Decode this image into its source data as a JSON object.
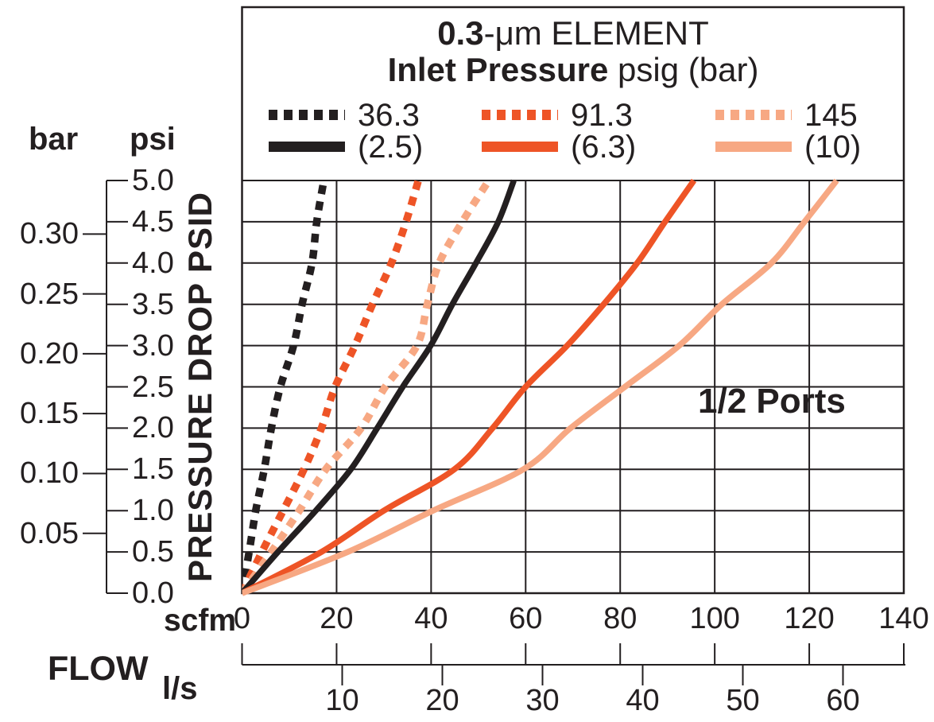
{
  "colors": {
    "black": "#231f20",
    "orange": "#ee5426",
    "light_orange": "#f7a883",
    "grid": "#231f20",
    "background": "#ffffff"
  },
  "title": {
    "line1_bold": "0.3",
    "line1_rest": "-μm ELEMENT",
    "line2_bold": "Inlet Pressure",
    "line2_rest": " psig (bar)"
  },
  "legend": {
    "entries": [
      {
        "psig": "36.3",
        "bar": "(2.5)",
        "color_key": "black"
      },
      {
        "psig": "91.3",
        "bar": "(6.3)",
        "color_key": "orange"
      },
      {
        "psig": "145",
        "bar": "(10)",
        "color_key": "light_orange"
      }
    ]
  },
  "annotation": "1/2 Ports",
  "y_axis": {
    "unit_left": "bar",
    "unit_right": "psi",
    "label": "PRESSURE DROP PSID",
    "psi_ticks": [
      "5.0",
      "4.5",
      "4.0",
      "3.5",
      "3.0",
      "2.5",
      "2.0",
      "1.5",
      "1.0",
      "0.5",
      "0.0"
    ],
    "bar_ticks": [
      "0.30",
      "0.25",
      "0.20",
      "0.15",
      "0.10",
      "0.05"
    ]
  },
  "x_axis": {
    "unit_top": "scfm",
    "label": "FLOW",
    "unit_bottom": "l/s",
    "scfm_ticks": [
      "0",
      "20",
      "40",
      "60",
      "80",
      "100",
      "120",
      "140"
    ],
    "ls_ticks": [
      "10",
      "20",
      "30",
      "40",
      "50",
      "60"
    ]
  },
  "chart_data": {
    "type": "line",
    "title": "0.3-μm ELEMENT",
    "subtitle": "Inlet Pressure psig (bar)",
    "xlabel": "FLOW",
    "ylabel": "PRESSURE DROP PSID",
    "annotation": "1/2 Ports",
    "grid": true,
    "legend_position": "top",
    "xlim": [
      0,
      140
    ],
    "ylim": [
      0,
      5
    ],
    "x_unit_primary": "scfm",
    "x_unit_secondary": "l/s",
    "scfm_per_ls": 2.1189,
    "psi_per_bar": 14.5038,
    "x_ticks_scfm": [
      0,
      20,
      40,
      60,
      80,
      100,
      120,
      140
    ],
    "x_ticks_ls": [
      10,
      20,
      30,
      40,
      50,
      60
    ],
    "y_ticks_psi": [
      0,
      0.5,
      1.0,
      1.5,
      2.0,
      2.5,
      3.0,
      3.5,
      4.0,
      4.5,
      5.0
    ],
    "y_ticks_bar": [
      0.05,
      0.1,
      0.15,
      0.2,
      0.25,
      0.3
    ],
    "series": [
      {
        "name": "36.3 psig (2.5 bar) dashed",
        "inlet_pressure_psig": 36.3,
        "inlet_pressure_bar": 2.5,
        "style": "dashed",
        "color": "#231f20",
        "points": [
          [
            0,
            0
          ],
          [
            1.5,
            0.5
          ],
          [
            2.9,
            1.0
          ],
          [
            4.7,
            1.5
          ],
          [
            6.2,
            2.0
          ],
          [
            8.1,
            2.5
          ],
          [
            10.9,
            3.0
          ],
          [
            12.7,
            3.5
          ],
          [
            14.8,
            4.0
          ],
          [
            15.8,
            4.5
          ],
          [
            17.3,
            5.0
          ]
        ]
      },
      {
        "name": "91.3 psig (6.3 bar) dashed",
        "inlet_pressure_psig": 91.3,
        "inlet_pressure_bar": 6.3,
        "style": "dashed",
        "color": "#ee5426",
        "points": [
          [
            0,
            0
          ],
          [
            4.2,
            0.5
          ],
          [
            8.7,
            1.0
          ],
          [
            13.1,
            1.5
          ],
          [
            16.8,
            2.0
          ],
          [
            19.7,
            2.5
          ],
          [
            23.9,
            3.0
          ],
          [
            27.6,
            3.5
          ],
          [
            31.6,
            4.0
          ],
          [
            34.7,
            4.5
          ],
          [
            37.3,
            5.0
          ]
        ]
      },
      {
        "name": "145 psig (10 bar) dashed",
        "inlet_pressure_psig": 145,
        "inlet_pressure_bar": 10,
        "style": "dashed",
        "color": "#f7a883",
        "points": [
          [
            0,
            0
          ],
          [
            6.2,
            0.5
          ],
          [
            12.1,
            1.0
          ],
          [
            17.7,
            1.5
          ],
          [
            25.2,
            2.0
          ],
          [
            30.3,
            2.5
          ],
          [
            37.0,
            3.0
          ],
          [
            39.2,
            3.5
          ],
          [
            41.7,
            4.0
          ],
          [
            46.6,
            4.5
          ],
          [
            52.2,
            5.0
          ]
        ]
      },
      {
        "name": "36.3 psig (2.5 bar) solid",
        "inlet_pressure_psig": 36.3,
        "inlet_pressure_bar": 2.5,
        "style": "solid",
        "color": "#231f20",
        "points": [
          [
            0,
            0
          ],
          [
            7.6,
            0.5
          ],
          [
            15.6,
            1.0
          ],
          [
            23.0,
            1.5
          ],
          [
            28.6,
            2.0
          ],
          [
            34.0,
            2.5
          ],
          [
            39.9,
            3.0
          ],
          [
            44.5,
            3.5
          ],
          [
            49.5,
            4.0
          ],
          [
            54.2,
            4.5
          ],
          [
            57.5,
            5.0
          ]
        ]
      },
      {
        "name": "91.3 psig (6.3 bar) solid",
        "inlet_pressure_psig": 91.3,
        "inlet_pressure_bar": 6.3,
        "style": "solid",
        "color": "#ee5426",
        "points": [
          [
            0,
            0
          ],
          [
            16.8,
            0.5
          ],
          [
            30.0,
            1.0
          ],
          [
            44.9,
            1.5
          ],
          [
            53.0,
            2.0
          ],
          [
            60.0,
            2.5
          ],
          [
            68.8,
            3.0
          ],
          [
            76.5,
            3.5
          ],
          [
            83.6,
            4.0
          ],
          [
            89.5,
            4.5
          ],
          [
            95.6,
            5.0
          ]
        ]
      },
      {
        "name": "145 psig (10 bar) solid",
        "inlet_pressure_psig": 145,
        "inlet_pressure_bar": 10,
        "style": "solid",
        "color": "#f7a883",
        "points": [
          [
            0,
            0
          ],
          [
            22.4,
            0.5
          ],
          [
            40.4,
            1.0
          ],
          [
            59.5,
            1.5
          ],
          [
            69.5,
            2.0
          ],
          [
            81.0,
            2.5
          ],
          [
            92.5,
            3.0
          ],
          [
            101.5,
            3.5
          ],
          [
            112.0,
            4.0
          ],
          [
            119.0,
            4.5
          ],
          [
            125.8,
            5.0
          ]
        ]
      }
    ]
  }
}
